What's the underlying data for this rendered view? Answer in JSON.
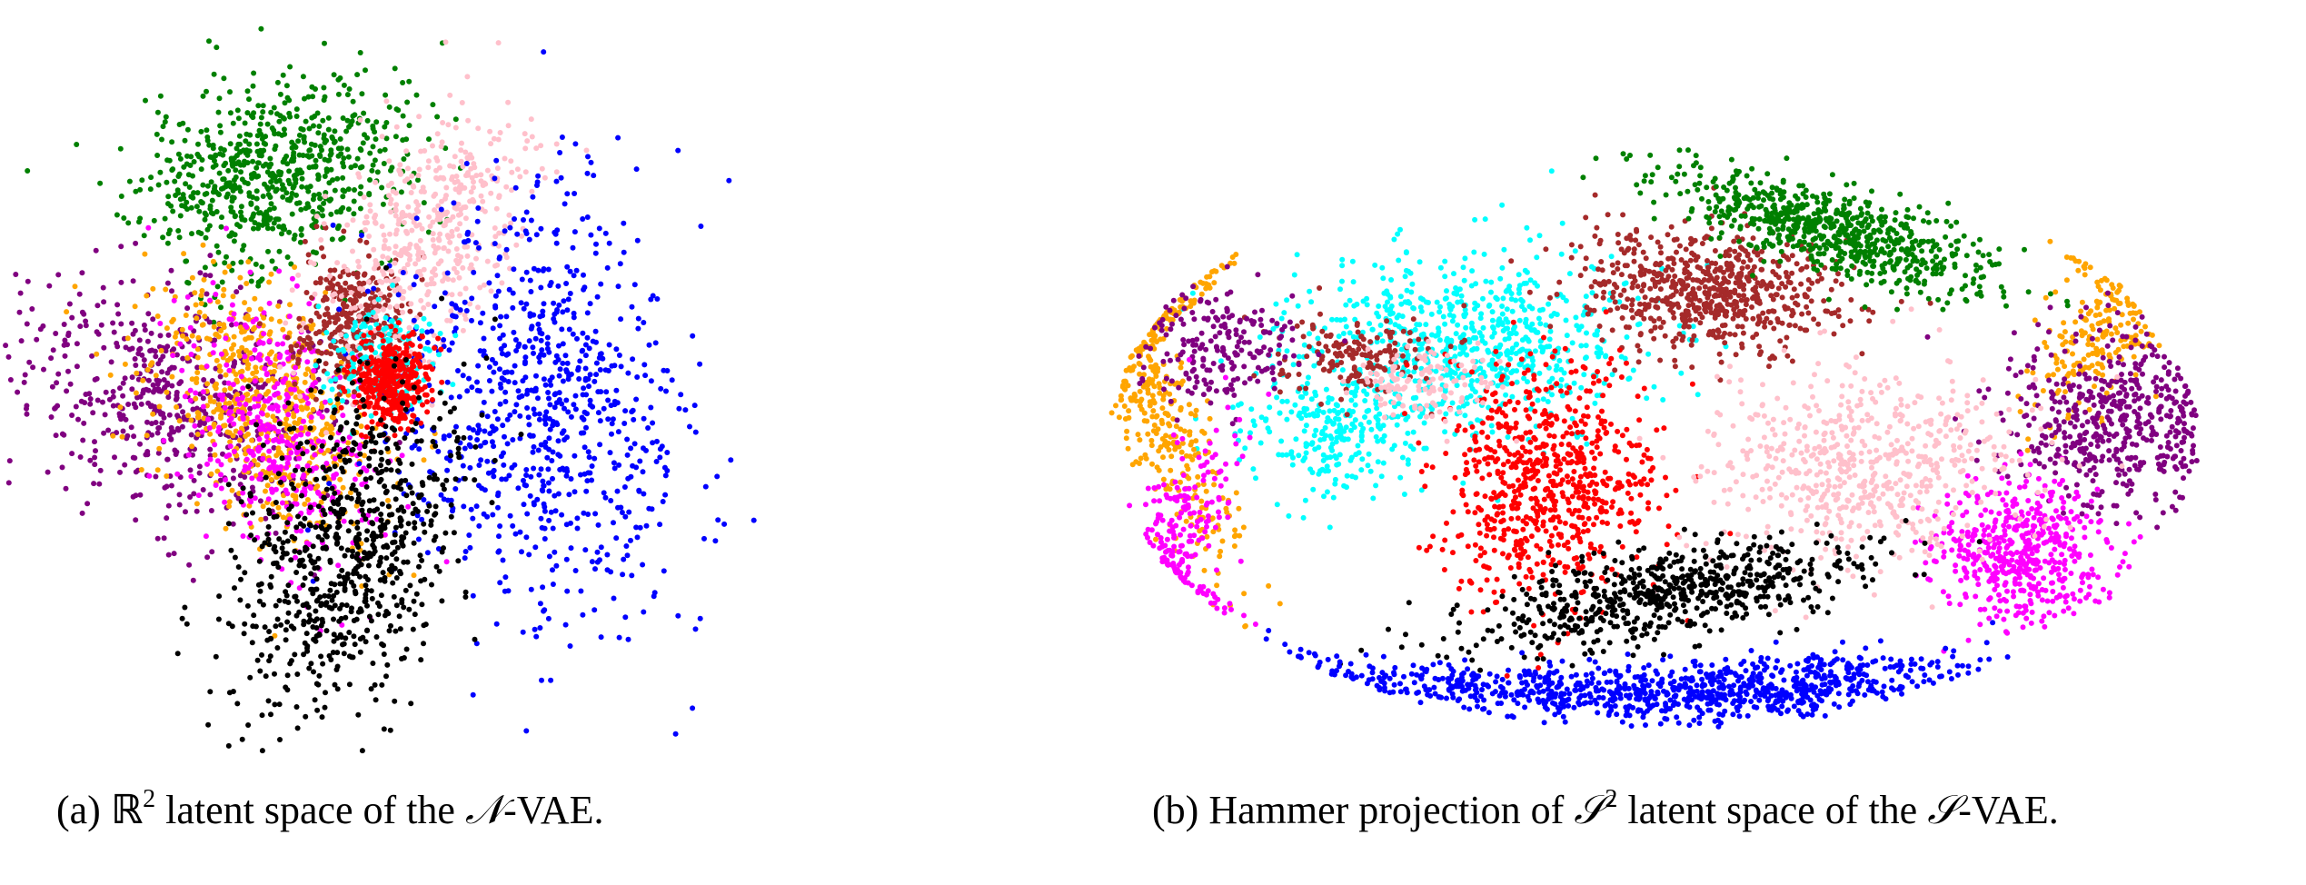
{
  "chart_data": [
    {
      "type": "scatter",
      "panel": "a",
      "title": "",
      "caption": {
        "label": "(a)",
        "space": "ℝ",
        "exponent": "2",
        "pre": "latent space of the",
        "model_symbol": "𝒩",
        "post": "-VAE."
      },
      "axes": "hidden",
      "grid": false,
      "xlim": [
        -4,
        4
      ],
      "ylim": [
        -4,
        4
      ],
      "series": [
        {
          "color": "#008000",
          "cx": -1.2,
          "cy": 2.3,
          "sx": 0.75,
          "sy": 0.5,
          "rot": 15,
          "count": 700,
          "seed": 11
        },
        {
          "color": "#800080",
          "cx": -2.3,
          "cy": -0.2,
          "sx": 0.85,
          "sy": 0.6,
          "rot": -20,
          "count": 550,
          "seed": 12
        },
        {
          "color": "#ffa500",
          "cx": -1.3,
          "cy": -0.3,
          "sx": 0.5,
          "sy": 0.8,
          "rot": 35,
          "count": 600,
          "seed": 13
        },
        {
          "color": "#ff00ff",
          "cx": -1.1,
          "cy": -0.6,
          "sx": 0.5,
          "sy": 0.8,
          "rot": 20,
          "count": 400,
          "seed": 14
        },
        {
          "color": "#a52a2a",
          "cx": -0.3,
          "cy": 0.7,
          "sx": 0.3,
          "sy": 0.4,
          "rot": 0,
          "count": 320,
          "seed": 15
        },
        {
          "color": "#ffc0cb",
          "cx": 0.5,
          "cy": 1.6,
          "sx": 0.45,
          "sy": 0.8,
          "rot": -30,
          "count": 480,
          "seed": 16
        },
        {
          "color": "#0000ff",
          "cx": 1.7,
          "cy": -0.3,
          "sx": 0.8,
          "sy": 1.2,
          "rot": 10,
          "count": 800,
          "seed": 17
        },
        {
          "color": "#00ffff",
          "cx": 0.0,
          "cy": 0.2,
          "sx": 0.3,
          "sy": 0.3,
          "rot": 0,
          "count": 180,
          "seed": 18
        },
        {
          "color": "#ff0000",
          "cx": 0.1,
          "cy": 0.0,
          "sx": 0.22,
          "sy": 0.25,
          "rot": 0,
          "count": 380,
          "seed": 19
        },
        {
          "color": "#000000",
          "cx": -0.4,
          "cy": -1.9,
          "sx": 0.55,
          "sy": 0.95,
          "rot": -25,
          "count": 750,
          "seed": 20
        }
      ]
    },
    {
      "type": "scatter",
      "panel": "b",
      "title": "",
      "caption": {
        "label": "(b)",
        "pre": "Hammer projection of",
        "space": "𝒮",
        "exponent": "2",
        "mid": "latent space of the",
        "model_symbol": "𝒮",
        "post": "-VAE."
      },
      "projection": "hammer",
      "axes": "hidden",
      "grid": false,
      "series": [
        {
          "color": "#00ffff",
          "cx": -0.33,
          "cy": 0.32,
          "sx": 0.16,
          "sy": 0.15,
          "rot": 0,
          "count": 700,
          "seed": 31
        },
        {
          "color": "#00ffff",
          "cx": -0.58,
          "cy": 0.02,
          "sx": 0.08,
          "sy": 0.1,
          "rot": 0,
          "count": 250,
          "seed": 32
        },
        {
          "color": "#a52a2a",
          "cx": 0.1,
          "cy": 0.5,
          "sx": 0.12,
          "sy": 0.1,
          "rot": -25,
          "count": 650,
          "seed": 33
        },
        {
          "color": "#a52a2a",
          "cx": -0.55,
          "cy": 0.28,
          "sx": 0.08,
          "sy": 0.07,
          "rot": 0,
          "count": 160,
          "seed": 34
        },
        {
          "color": "#008000",
          "cx": 0.32,
          "cy": 0.7,
          "sx": 0.17,
          "sy": 0.06,
          "rot": -32,
          "count": 700,
          "seed": 35
        },
        {
          "color": "#ffa500",
          "cx": -0.9,
          "cy": 0.1,
          "sx": 0.04,
          "sy": 0.3,
          "rot": 12,
          "count": 350,
          "seed": 36
        },
        {
          "color": "#ffa500",
          "cx": 0.82,
          "cy": 0.35,
          "sx": 0.05,
          "sy": 0.15,
          "rot": -15,
          "count": 200,
          "seed": 37
        },
        {
          "color": "#800080",
          "cx": 0.83,
          "cy": 0.05,
          "sx": 0.1,
          "sy": 0.14,
          "rot": 0,
          "count": 500,
          "seed": 38
        },
        {
          "color": "#800080",
          "cx": -0.8,
          "cy": 0.3,
          "sx": 0.08,
          "sy": 0.1,
          "rot": 0,
          "count": 200,
          "seed": 39
        },
        {
          "color": "#ff00ff",
          "cx": 0.67,
          "cy": -0.38,
          "sx": 0.08,
          "sy": 0.12,
          "rot": 0,
          "count": 500,
          "seed": 40
        },
        {
          "color": "#ff00ff",
          "cx": -0.86,
          "cy": -0.3,
          "sx": 0.04,
          "sy": 0.2,
          "rot": -12,
          "count": 200,
          "seed": 41
        },
        {
          "color": "#ff0000",
          "cx": -0.2,
          "cy": -0.15,
          "sx": 0.1,
          "sy": 0.2,
          "rot": 0,
          "count": 700,
          "seed": 42
        },
        {
          "color": "#ffc0cb",
          "cx": 0.38,
          "cy": -0.12,
          "sx": 0.14,
          "sy": 0.17,
          "rot": 0,
          "count": 600,
          "seed": 43
        },
        {
          "color": "#ffc0cb",
          "cx": -0.43,
          "cy": 0.18,
          "sx": 0.07,
          "sy": 0.06,
          "rot": 0,
          "count": 120,
          "seed": 44
        },
        {
          "color": "#000000",
          "cx": 0.02,
          "cy": -0.53,
          "sx": 0.18,
          "sy": 0.07,
          "rot": 20,
          "count": 650,
          "seed": 45
        },
        {
          "color": "#0000ff",
          "cx": 0.2,
          "cy": -0.84,
          "sx": 0.18,
          "sy": 0.05,
          "rot": 8,
          "count": 550,
          "seed": 46
        },
        {
          "color": "#0000ff",
          "cx": -0.22,
          "cy": -0.85,
          "sx": 0.22,
          "sy": 0.04,
          "rot": -5,
          "count": 400,
          "seed": 47
        }
      ]
    }
  ]
}
